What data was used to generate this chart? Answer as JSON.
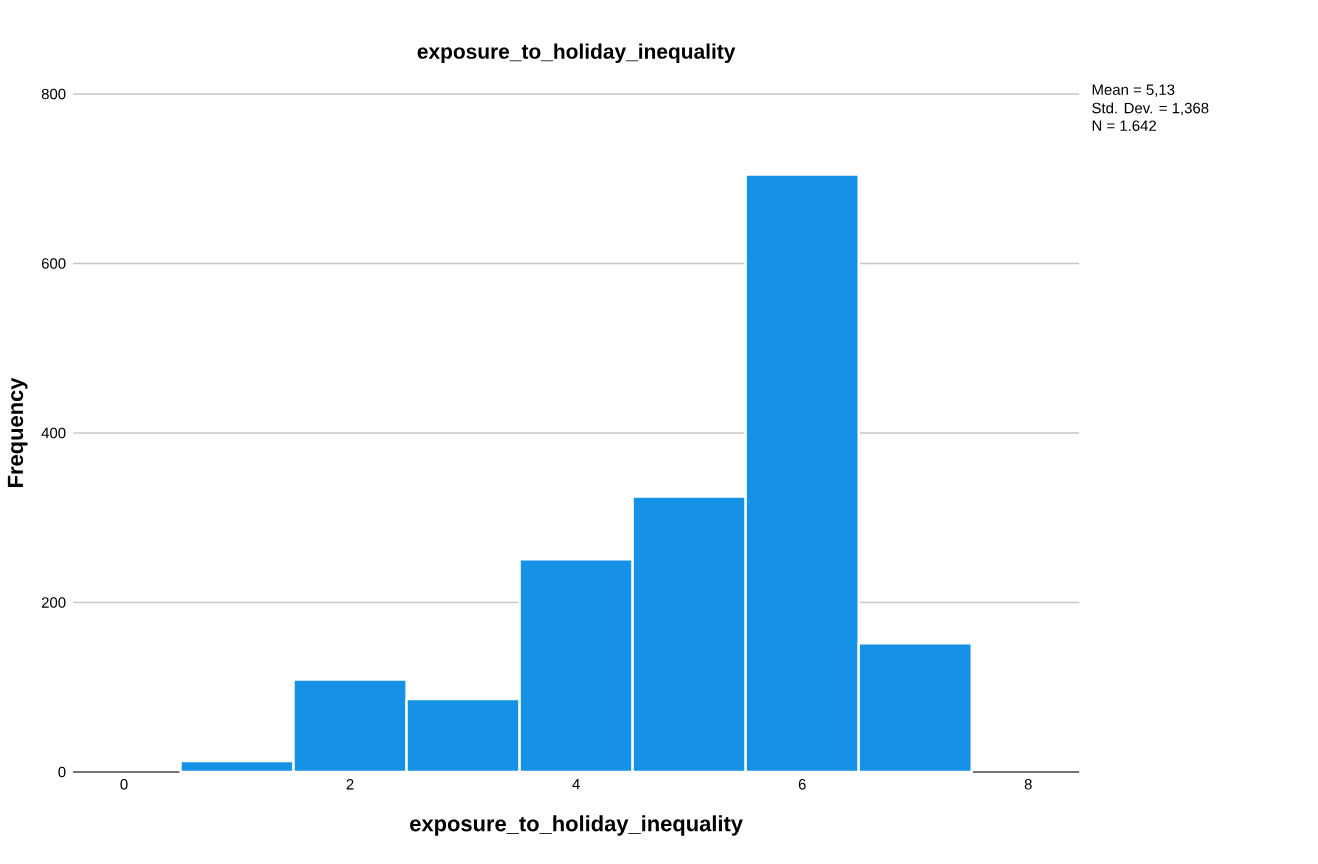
{
  "chart_data": {
    "type": "histogram",
    "title": "exposure_to_holiday_inequality",
    "xlabel": "exposure_to_holiday_inequality",
    "ylabel": "Frequency",
    "annotations": [
      "Mean = 5,13",
      "Std. Dev. = 1,368",
      "N = 1.642"
    ],
    "bins": [
      0.5,
      1.5,
      2.5,
      3.5,
      4.5,
      5.5,
      6.5,
      7.5
    ],
    "values": [
      13,
      109,
      86,
      251,
      325,
      705,
      152
    ],
    "color": "#1592e6",
    "xlim": [
      -0.45,
      8.45
    ],
    "ylim": [
      0,
      800
    ],
    "xticks": [
      0,
      2,
      4,
      6,
      8
    ],
    "yticks": [
      0,
      200,
      400,
      600,
      800
    ],
    "grid": "y"
  }
}
